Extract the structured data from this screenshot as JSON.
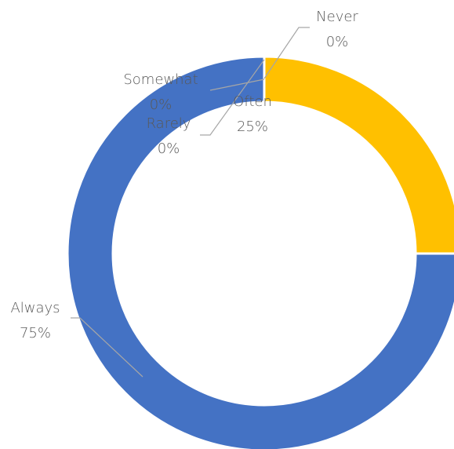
{
  "chart_data": {
    "type": "donut",
    "categories": [
      "Never",
      "Rarely",
      "Somewhat",
      "Often",
      "Always"
    ],
    "values": [
      0,
      0,
      0,
      25,
      75
    ],
    "value_labels": [
      "0%",
      "0%",
      "0%",
      "25%",
      "75%"
    ],
    "colors": [
      "#4472C4",
      "#ED7D31",
      "#A5A5A5",
      "#FFC000",
      "#4472C4"
    ]
  }
}
